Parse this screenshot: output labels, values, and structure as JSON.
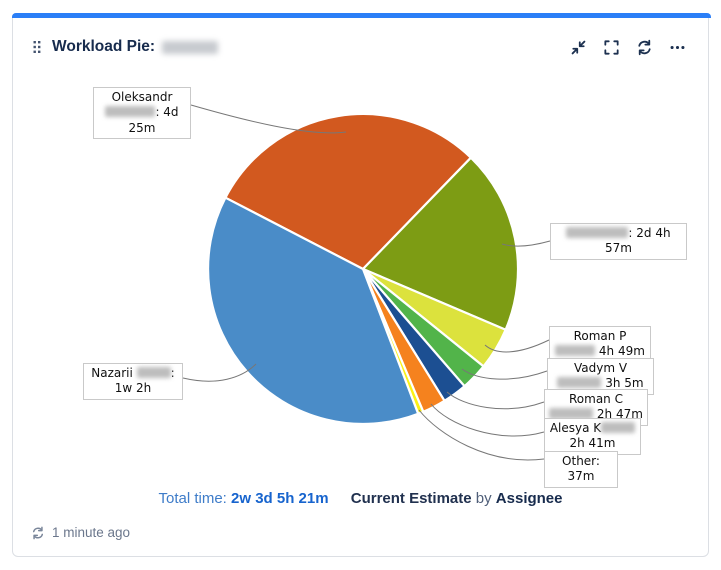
{
  "card": {
    "accent_color": "#2b7ff7",
    "header": {
      "title": "Workload Pie:",
      "title_redacted": true,
      "actions": [
        {
          "id": "collapse",
          "label": "Collapse"
        },
        {
          "id": "fullscreen",
          "label": "Full screen"
        },
        {
          "id": "refresh",
          "label": "Refresh"
        },
        {
          "id": "more",
          "label": "More options"
        }
      ]
    },
    "footer": {
      "total_label": "Total time:",
      "total_value": "2w 3d 5h 21m",
      "estimate_field": "Current Estimate",
      "by_word": "by",
      "group_by": "Assignee"
    },
    "status": {
      "updated_text": "1 minute ago"
    }
  },
  "chart_data": {
    "type": "pie",
    "title": "Workload Pie",
    "metric": "Current Estimate",
    "group_by": "Assignee",
    "total_time": "2w 3d 5h 21m",
    "total_minutes": 6561,
    "start_angle_deg": 297.4,
    "legend_position": "callout-labels",
    "slices": [
      {
        "id": "oleksandr",
        "visible_name": "Oleksandr",
        "redacted": true,
        "time": "4d 25m",
        "minutes": 1945,
        "color": "#d2591f",
        "label_parts": [
          {
            "t": "Oleksandr "
          },
          {
            "b": 50
          },
          {
            "t": ": 4d 25m"
          }
        ]
      },
      {
        "id": "redacted-1",
        "visible_name": "",
        "redacted": true,
        "time": "2d 4h 57m",
        "minutes": 1257,
        "color": "#7d9c14",
        "label_parts": [
          {
            "b": 62
          },
          {
            "t": ": 2d 4h 57m"
          }
        ]
      },
      {
        "id": "roman-p",
        "visible_name": "Roman P",
        "redacted": true,
        "time": "4h 49m",
        "minutes": 289,
        "color": "#dce23d",
        "label_parts": [
          {
            "t": "Roman P"
          },
          {
            "b": 40
          },
          {
            "t": " 4h 49m"
          }
        ]
      },
      {
        "id": "vadym",
        "visible_name": "Vadym V",
        "redacted": true,
        "time": "3h 5m",
        "minutes": 185,
        "color": "#52b44a",
        "label_parts": [
          {
            "t": "Vadym V"
          },
          {
            "b": 44
          },
          {
            "t": " 3h 5m"
          }
        ]
      },
      {
        "id": "roman-c",
        "visible_name": "Roman C",
        "redacted": true,
        "time": "2h 47m",
        "minutes": 167,
        "color": "#1c4f92",
        "label_parts": [
          {
            "t": "Roman C"
          },
          {
            "b": 44
          },
          {
            "t": " 2h 47m"
          }
        ]
      },
      {
        "id": "alesya",
        "visible_name": "Alesya K",
        "redacted": true,
        "time": "2h 41m",
        "minutes": 161,
        "color": "#f5821e",
        "label_parts": [
          {
            "t": "Alesya K"
          },
          {
            "b": 34
          },
          {
            "t": " 2h 41m"
          }
        ]
      },
      {
        "id": "other",
        "visible_name": "Other",
        "redacted": false,
        "time": "37m",
        "minutes": 37,
        "color": "#fbf116",
        "label_parts": [
          {
            "t": "Other: 37m"
          }
        ]
      },
      {
        "id": "nazarii",
        "visible_name": "Nazarii",
        "redacted": true,
        "time": "1w 2h",
        "minutes": 2520,
        "color": "#4a8cc8",
        "label_parts": [
          {
            "t": "Nazarii "
          },
          {
            "b": 34
          },
          {
            "t": ": 1w 2h"
          }
        ]
      }
    ]
  }
}
